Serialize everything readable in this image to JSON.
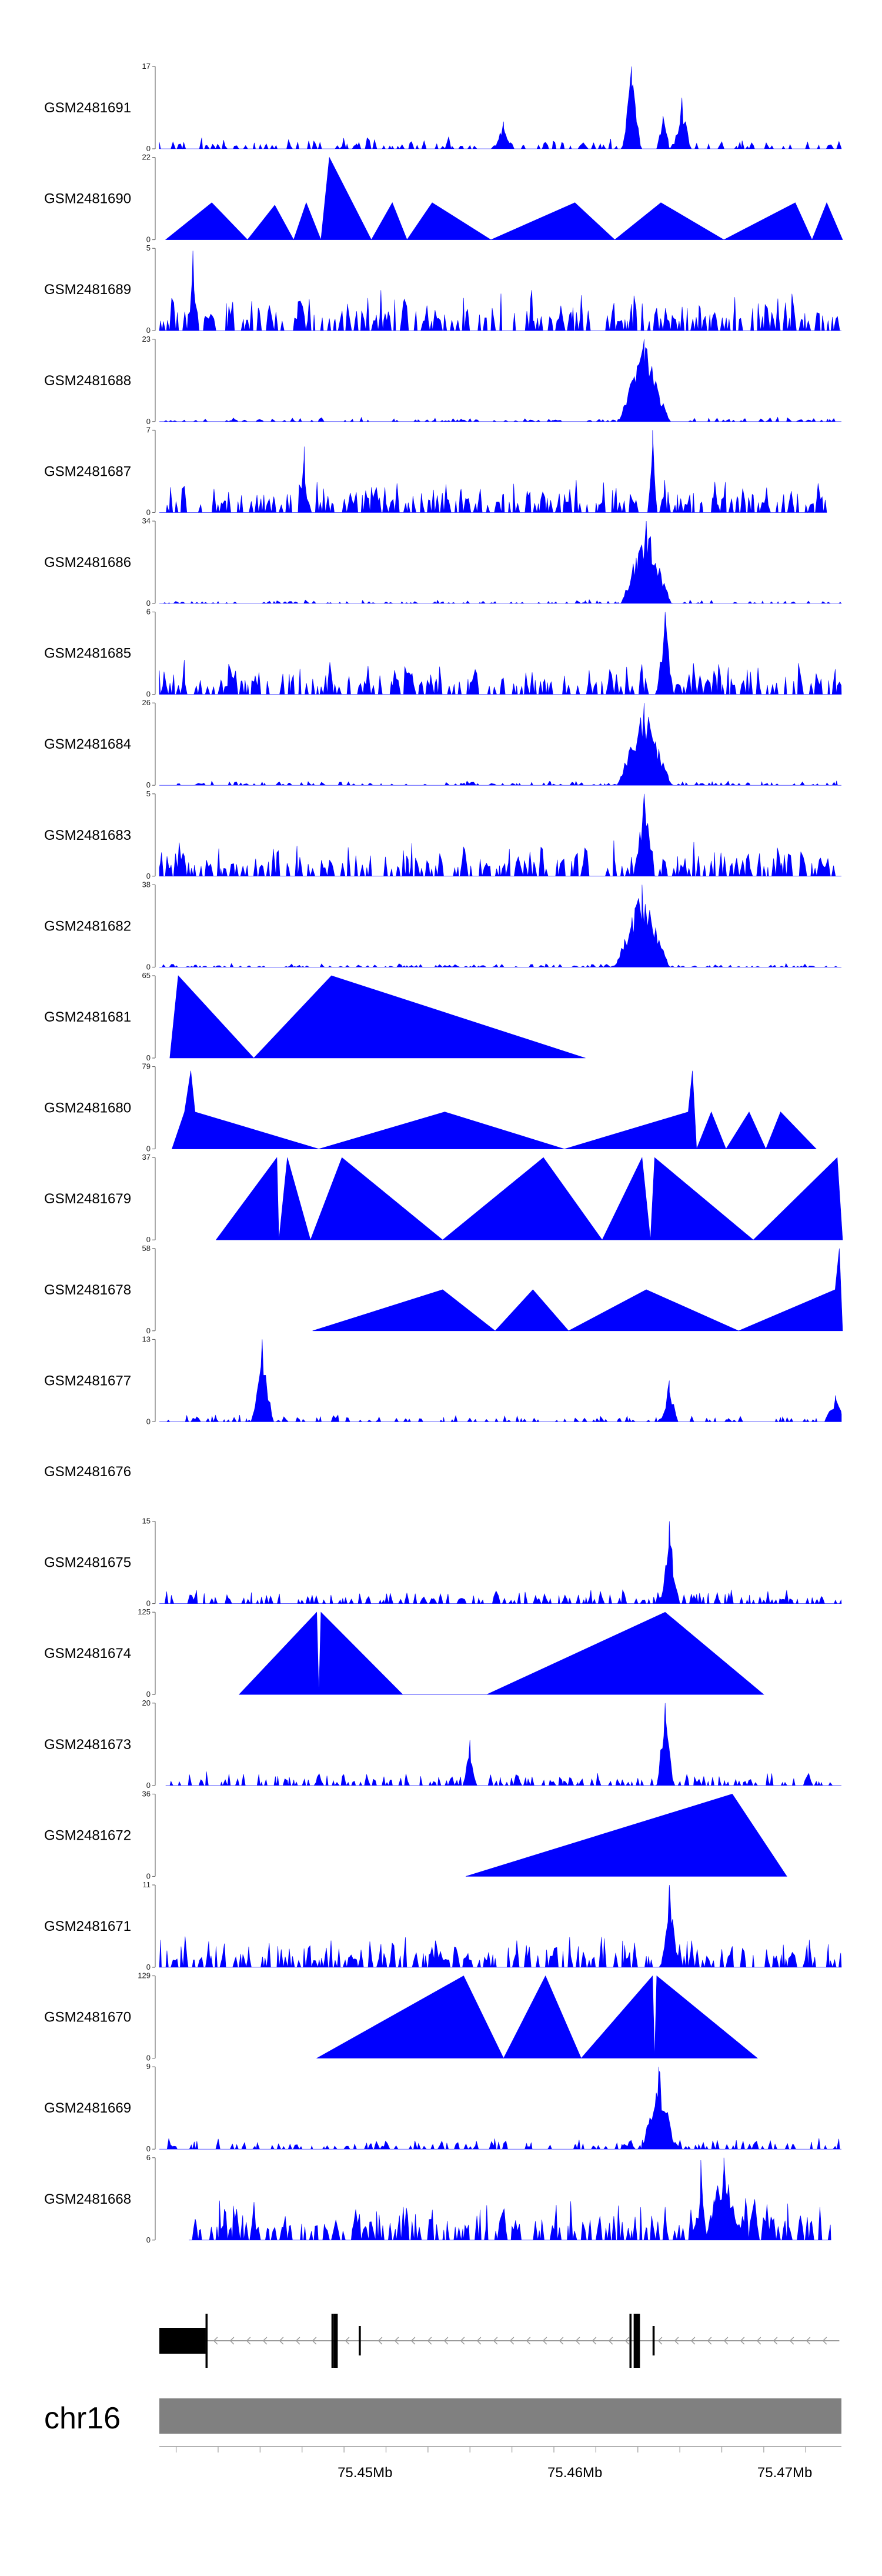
{
  "colors": {
    "signal": "#0000ff",
    "axis": "#555555",
    "gene": "#000000",
    "intron": "#9a9a9a",
    "chromosome": "#808080"
  },
  "chart_data": {
    "type": "area",
    "title": "",
    "chromosome": "chr16",
    "x_range_mb": [
      75.4402,
      75.4727
    ],
    "x_ticks": [
      {
        "value": 75.45,
        "label": "75.45Mb"
      },
      {
        "value": 75.46,
        "label": "75.46Mb"
      },
      {
        "value": 75.47,
        "label": "75.47Mb"
      }
    ],
    "gene_model": {
      "strand": "-",
      "start_mb": 75.4402,
      "end_mb": 75.4726,
      "exons": [
        {
          "start": 75.4402,
          "end": 75.4424,
          "height": "utr"
        },
        {
          "start": 75.4424,
          "end": 75.4425,
          "height": "full"
        },
        {
          "start": 75.4484,
          "end": 75.4485,
          "height": "full"
        },
        {
          "start": 75.4485,
          "end": 75.4487,
          "height": "full"
        },
        {
          "start": 75.4497,
          "end": 75.4498,
          "height": "small"
        },
        {
          "start": 75.4626,
          "end": 75.4627,
          "height": "full"
        },
        {
          "start": 75.4628,
          "end": 75.4631,
          "height": "full"
        },
        {
          "start": 75.4637,
          "end": 75.4638,
          "height": "small"
        }
      ]
    },
    "tracks": [
      {
        "name": "GSM2481691",
        "ymax": 17,
        "pattern": "noise",
        "density": 0.55,
        "base": 0.15,
        "start": 75.4402,
        "end": 75.4727,
        "peaks": [
          {
            "x": 75.4627,
            "h": 1.0,
            "w": 0.00045
          },
          {
            "x": 75.4651,
            "h": 0.62,
            "w": 0.0004
          },
          {
            "x": 75.4566,
            "h": 0.33,
            "w": 0.0004
          },
          {
            "x": 75.4642,
            "h": 0.4,
            "w": 0.0003
          }
        ]
      },
      {
        "name": "GSM2481690",
        "ymax": 22,
        "pattern": "points",
        "points": [
          [
            75.4405,
            0
          ],
          [
            75.4427,
            0.45
          ],
          [
            75.4444,
            0
          ],
          [
            75.4457,
            0.42
          ],
          [
            75.4466,
            0
          ],
          [
            75.4472,
            0.45
          ],
          [
            75.4479,
            0
          ],
          [
            75.4483,
            1.0
          ],
          [
            75.4503,
            0
          ],
          [
            75.4513,
            0.45
          ],
          [
            75.452,
            0
          ],
          [
            75.4532,
            0.45
          ],
          [
            75.456,
            0
          ],
          [
            75.46,
            0.45
          ],
          [
            75.4619,
            0
          ],
          [
            75.4641,
            0.45
          ],
          [
            75.4671,
            0
          ],
          [
            75.4705,
            0.45
          ],
          [
            75.4713,
            0
          ],
          [
            75.472,
            0.45
          ],
          [
            75.473,
            0
          ]
        ]
      },
      {
        "name": "GSM2481689",
        "ymax": 5,
        "pattern": "noise",
        "density": 0.95,
        "base": 0.55,
        "start": 75.4402,
        "end": 75.4727,
        "peaks": [
          {
            "x": 75.4418,
            "h": 0.97,
            "w": 0.0002
          }
        ]
      },
      {
        "name": "GSM2481688",
        "ymax": 23,
        "pattern": "noise",
        "density": 0.55,
        "base": 0.06,
        "start": 75.4402,
        "end": 75.4727,
        "peaks": [
          {
            "x": 75.4633,
            "h": 1.0,
            "w": 0.0012
          }
        ]
      },
      {
        "name": "GSM2481687",
        "ymax": 7,
        "pattern": "noise",
        "density": 0.9,
        "base": 0.45,
        "start": 75.4402,
        "end": 75.472,
        "peaks": [
          {
            "x": 75.4637,
            "h": 1.0,
            "w": 0.0002
          },
          {
            "x": 75.4471,
            "h": 0.8,
            "w": 0.0002
          }
        ]
      },
      {
        "name": "GSM2481686",
        "ymax": 34,
        "pattern": "noise",
        "density": 0.5,
        "base": 0.05,
        "start": 75.4402,
        "end": 75.4727,
        "peaks": [
          {
            "x": 75.4634,
            "h": 1.0,
            "w": 0.0012
          }
        ]
      },
      {
        "name": "GSM2481685",
        "ymax": 6,
        "pattern": "noise",
        "density": 0.9,
        "base": 0.45,
        "start": 75.4402,
        "end": 75.4727,
        "peaks": [
          {
            "x": 75.4643,
            "h": 1.0,
            "w": 0.0004
          }
        ]
      },
      {
        "name": "GSM2481684",
        "ymax": 26,
        "pattern": "noise",
        "density": 0.55,
        "base": 0.06,
        "start": 75.4402,
        "end": 75.4727,
        "peaks": [
          {
            "x": 75.4633,
            "h": 1.0,
            "w": 0.0013
          }
        ]
      },
      {
        "name": "GSM2481683",
        "ymax": 5,
        "pattern": "noise",
        "density": 0.9,
        "base": 0.45,
        "start": 75.4402,
        "end": 75.4727,
        "peaks": [
          {
            "x": 75.4633,
            "h": 1.0,
            "w": 0.0005
          }
        ]
      },
      {
        "name": "GSM2481682",
        "ymax": 38,
        "pattern": "noise",
        "density": 0.5,
        "base": 0.05,
        "start": 75.4402,
        "end": 75.4727,
        "peaks": [
          {
            "x": 75.4632,
            "h": 1.0,
            "w": 0.0013
          }
        ]
      },
      {
        "name": "GSM2481681",
        "ymax": 65,
        "pattern": "points",
        "points": [
          [
            75.4407,
            0
          ],
          [
            75.4411,
            1.0
          ],
          [
            75.4447,
            0
          ],
          [
            75.4484,
            1.0
          ],
          [
            75.4605,
            0
          ]
        ]
      },
      {
        "name": "GSM2481680",
        "ymax": 79,
        "pattern": "points",
        "points": [
          [
            75.4408,
            0
          ],
          [
            75.4414,
            0.45
          ],
          [
            75.4417,
            0.95
          ],
          [
            75.4419,
            0.45
          ],
          [
            75.4478,
            0
          ],
          [
            75.4538,
            0.45
          ],
          [
            75.4595,
            0
          ],
          [
            75.4654,
            0.45
          ],
          [
            75.4656,
            0.95
          ],
          [
            75.4658,
            0
          ],
          [
            75.4665,
            0.45
          ],
          [
            75.4672,
            0
          ],
          [
            75.4683,
            0.45
          ],
          [
            75.4691,
            0
          ],
          [
            75.4698,
            0.45
          ],
          [
            75.4715,
            0
          ]
        ]
      },
      {
        "name": "GSM2481679",
        "ymax": 37,
        "pattern": "points",
        "points": [
          [
            75.4429,
            0
          ],
          [
            75.4458,
            1.0
          ],
          [
            75.4459,
            0
          ],
          [
            75.4463,
            1.0
          ],
          [
            75.4474,
            0
          ],
          [
            75.4489,
            1.0
          ],
          [
            75.4537,
            0
          ],
          [
            75.4585,
            1.0
          ],
          [
            75.4613,
            0
          ],
          [
            75.4632,
            1.0
          ],
          [
            75.4636,
            0
          ],
          [
            75.4638,
            1.0
          ],
          [
            75.4685,
            0
          ],
          [
            75.4725,
            1.0
          ],
          [
            75.4731,
            0
          ]
        ]
      },
      {
        "name": "GSM2481678",
        "ymax": 58,
        "pattern": "points",
        "points": [
          [
            75.4475,
            0
          ],
          [
            75.4537,
            0.5
          ],
          [
            75.4562,
            0
          ],
          [
            75.458,
            0.5
          ],
          [
            75.4597,
            0
          ],
          [
            75.4634,
            0.5
          ],
          [
            75.4678,
            0
          ],
          [
            75.4724,
            0.5
          ],
          [
            75.4726,
            1.0
          ],
          [
            75.473,
            0
          ]
        ]
      },
      {
        "name": "GSM2481677",
        "ymax": 13,
        "pattern": "noise",
        "density": 0.6,
        "base": 0.1,
        "start": 75.4402,
        "end": 75.4727,
        "peaks": [
          {
            "x": 75.4451,
            "h": 1.0,
            "w": 0.0005
          },
          {
            "x": 75.4645,
            "h": 0.5,
            "w": 0.0004
          },
          {
            "x": 75.4724,
            "h": 0.32,
            "w": 0.0005
          }
        ]
      },
      {
        "name": "GSM2481676",
        "ymax": null,
        "pattern": "empty"
      },
      {
        "name": "GSM2481675",
        "ymax": 15,
        "pattern": "noise",
        "density": 0.75,
        "base": 0.2,
        "start": 75.4402,
        "end": 75.4727,
        "peaks": [
          {
            "x": 75.4645,
            "h": 1.0,
            "w": 0.0004
          }
        ]
      },
      {
        "name": "GSM2481674",
        "ymax": 125,
        "pattern": "points",
        "points": [
          [
            75.444,
            0
          ],
          [
            75.4477,
            1.0
          ],
          [
            75.4478,
            0
          ],
          [
            75.4479,
            1.0
          ],
          [
            75.4518,
            0
          ],
          [
            75.4558,
            0
          ],
          [
            75.4643,
            1.0
          ],
          [
            75.469,
            0
          ]
        ]
      },
      {
        "name": "GSM2481673",
        "ymax": 20,
        "pattern": "noise",
        "density": 0.7,
        "base": 0.18,
        "start": 75.4405,
        "end": 75.4727,
        "peaks": [
          {
            "x": 75.4643,
            "h": 1.0,
            "w": 0.0004
          },
          {
            "x": 75.455,
            "h": 0.55,
            "w": 0.0003
          }
        ]
      },
      {
        "name": "GSM2481672",
        "ymax": 36,
        "pattern": "points",
        "points": [
          [
            75.4548,
            0
          ],
          [
            75.4675,
            1.0
          ],
          [
            75.4701,
            0
          ]
        ]
      },
      {
        "name": "GSM2481671",
        "ymax": 11,
        "pattern": "noise",
        "density": 0.85,
        "base": 0.4,
        "start": 75.4402,
        "end": 75.4727,
        "peaks": [
          {
            "x": 75.4645,
            "h": 1.0,
            "w": 0.0004
          }
        ]
      },
      {
        "name": "GSM2481670",
        "ymax": 129,
        "pattern": "points",
        "points": [
          [
            75.4477,
            0
          ],
          [
            75.4547,
            1.0
          ],
          [
            75.4566,
            0
          ],
          [
            75.4586,
            1.0
          ],
          [
            75.4603,
            0
          ],
          [
            75.4637,
            1.0
          ],
          [
            75.4638,
            0
          ],
          [
            75.4639,
            1.0
          ],
          [
            75.4687,
            0
          ]
        ]
      },
      {
        "name": "GSM2481669",
        "ymax": 9,
        "pattern": "noise",
        "density": 0.7,
        "base": 0.15,
        "start": 75.4402,
        "end": 75.4727,
        "peaks": [
          {
            "x": 75.464,
            "h": 1.0,
            "w": 0.0008
          }
        ]
      },
      {
        "name": "GSM2481668",
        "ymax": 6,
        "pattern": "noise",
        "density": 0.85,
        "base": 0.55,
        "start": 75.4416,
        "end": 75.4722,
        "peaks": [
          {
            "x": 75.4671,
            "h": 1.0,
            "w": 0.0009
          },
          {
            "x": 75.466,
            "h": 0.97,
            "w": 0.0002
          }
        ]
      }
    ]
  }
}
